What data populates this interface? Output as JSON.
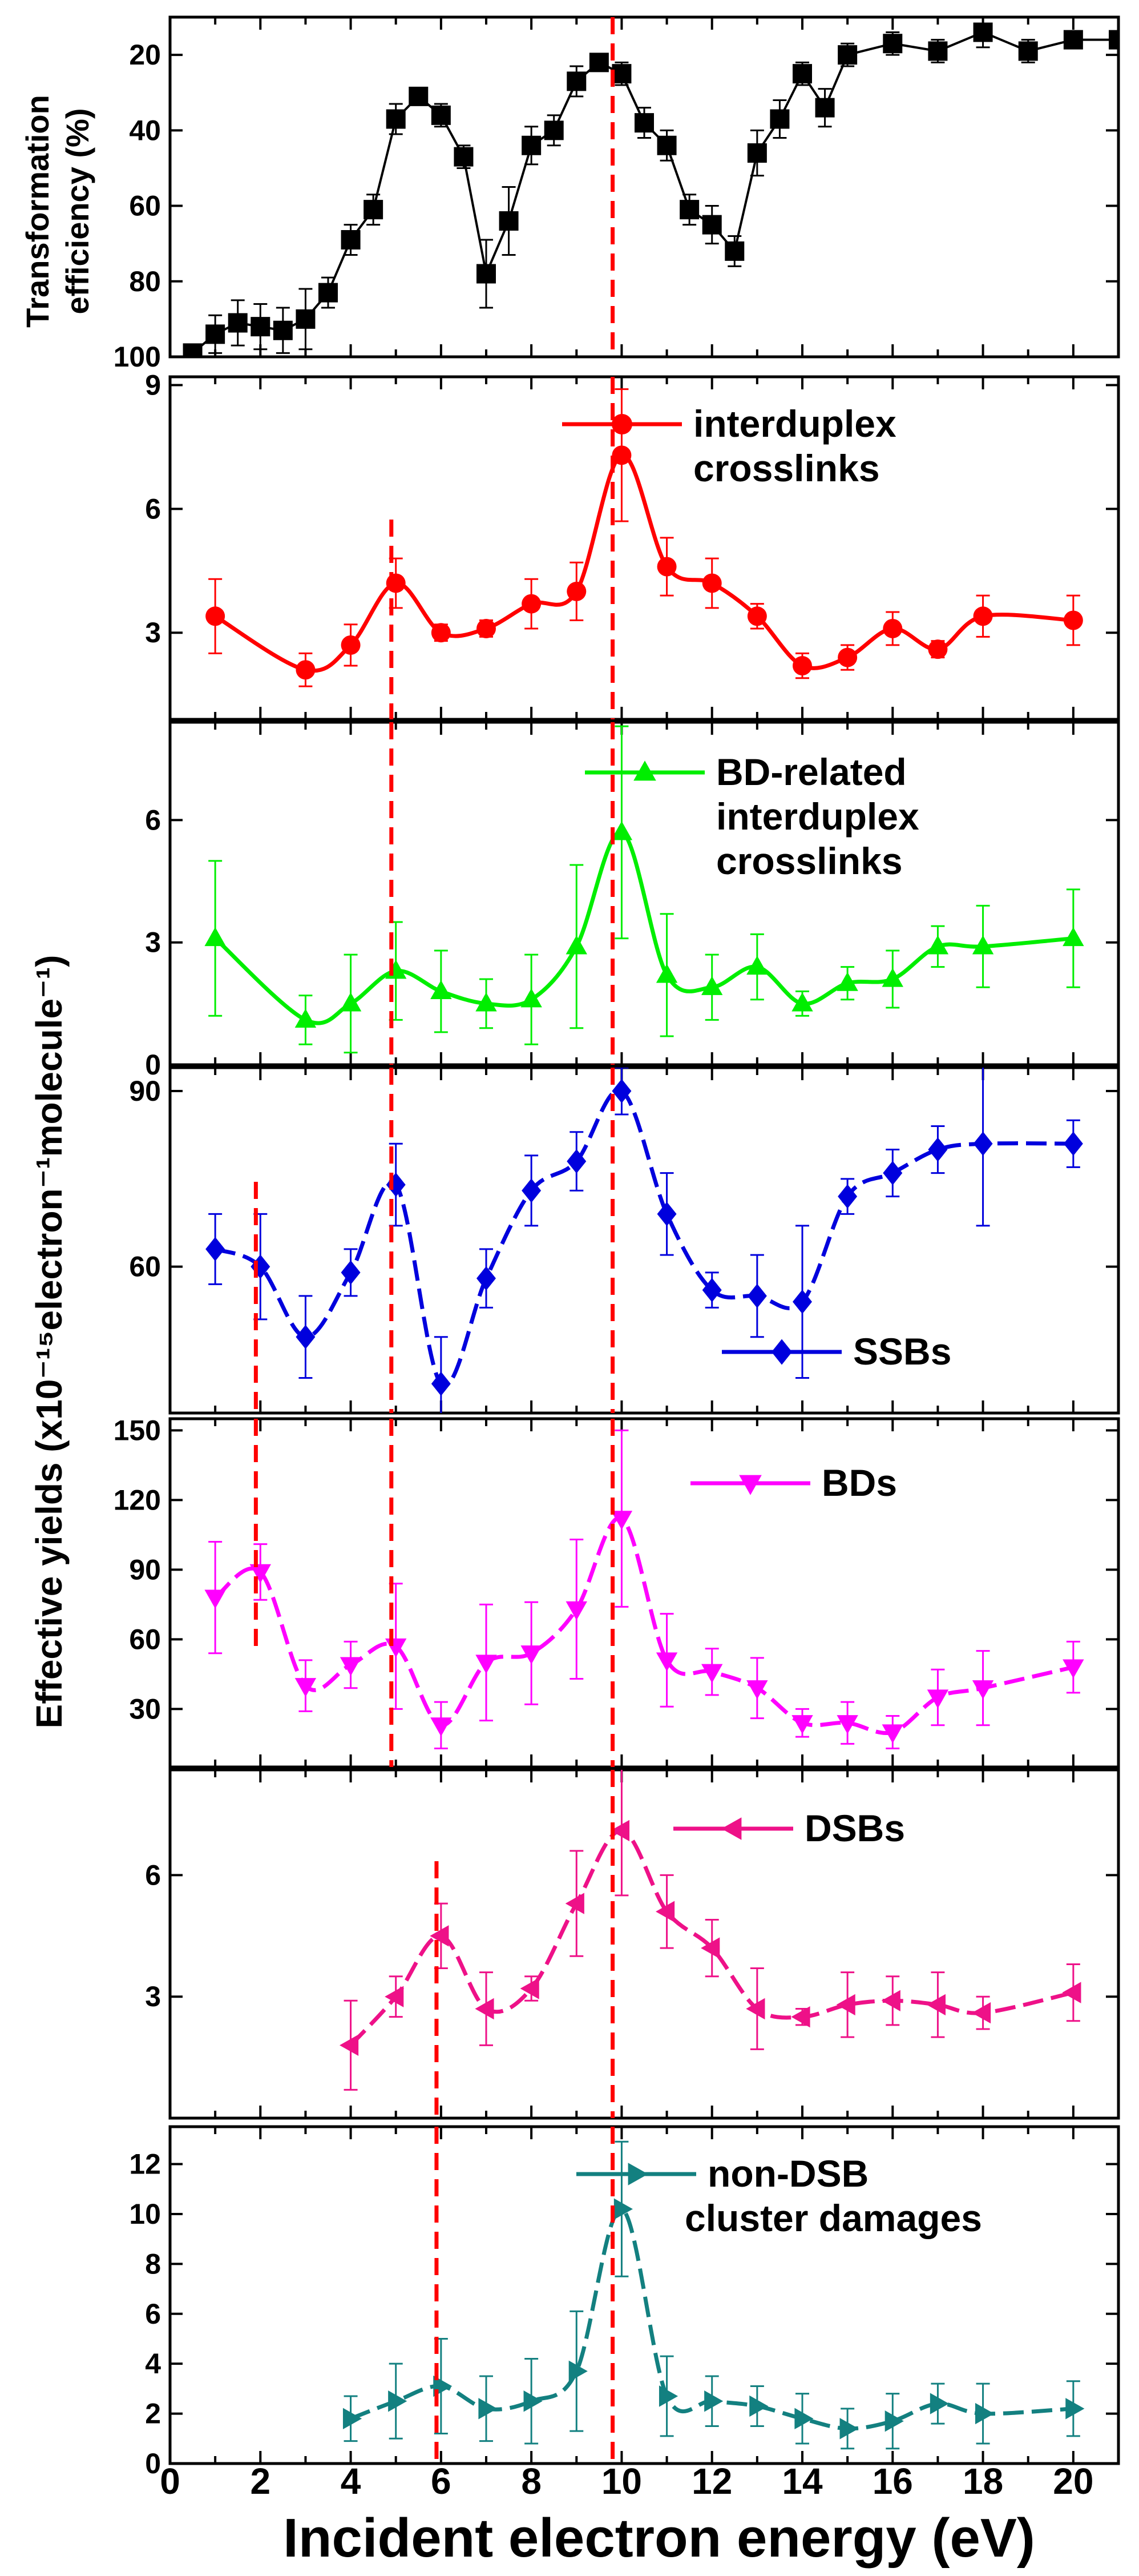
{
  "chart_data": {
    "type": "line",
    "title": "",
    "xlabel": "Incident electron energy (eV)",
    "x_ticks": [
      "0",
      "2",
      "4",
      "6",
      "8",
      "10",
      "12",
      "14",
      "16",
      "18",
      "20"
    ],
    "xlim": [
      0,
      21
    ],
    "shared_ylabel": "Effective yields (x10⁻¹⁵electron⁻¹molecule⁻¹)",
    "panels": [
      {
        "id": "transformation",
        "ylabel_line1": "Transformation",
        "ylabel_line2": "efficiency (%)",
        "ylim": [
          100,
          10
        ],
        "y_ticks": [
          "20",
          "40",
          "60",
          "80",
          "100"
        ],
        "y_tick_values": [
          20,
          40,
          60,
          80,
          100
        ],
        "legend": [],
        "color": "#000000",
        "marker": "square",
        "line_style": "solid",
        "x": [
          0.5,
          1,
          1.5,
          2,
          2.5,
          3,
          3.5,
          4,
          4.5,
          5,
          5.5,
          6,
          6.5,
          7,
          7.5,
          8,
          8.5,
          9,
          9.5,
          10,
          10.5,
          11,
          11.5,
          12,
          12.5,
          13,
          13.5,
          14,
          14.5,
          15,
          16,
          17,
          18,
          19,
          20,
          21
        ],
        "values": [
          99,
          94,
          91,
          92,
          93,
          90,
          83,
          69,
          61,
          37,
          31,
          36,
          47,
          78,
          64,
          44,
          40,
          27,
          22,
          25,
          38,
          44,
          61,
          65,
          72,
          46,
          37,
          25,
          34,
          20,
          17,
          19,
          14,
          19,
          16,
          16
        ],
        "errors": [
          2,
          5,
          6,
          6,
          6,
          8,
          4,
          4,
          4,
          4,
          2,
          3,
          3,
          9,
          9,
          5,
          4,
          4,
          2,
          3,
          4,
          4,
          4,
          5,
          4,
          6,
          5,
          3,
          5,
          3,
          3,
          3,
          4,
          3,
          2,
          2
        ],
        "vlines": [
          9.8
        ]
      },
      {
        "id": "interduplex",
        "ylim": [
          0.9,
          9.2
        ],
        "y_ticks": [
          "3",
          "6",
          "9"
        ],
        "y_tick_values": [
          3,
          6,
          9
        ],
        "legend": [
          "interduplex",
          "crosslinks"
        ],
        "color": "#ff0000",
        "marker": "circle",
        "line_style": "solid",
        "x": [
          1,
          3,
          4,
          5,
          6,
          7,
          8,
          9,
          10,
          11,
          12,
          13,
          14,
          15,
          16,
          17,
          18,
          20
        ],
        "values": [
          3.4,
          2.1,
          2.7,
          4.2,
          3.0,
          3.1,
          3.7,
          4.0,
          7.3,
          4.6,
          4.2,
          3.4,
          2.2,
          2.4,
          3.1,
          2.6,
          3.4,
          3.3
        ],
        "errors": [
          0.9,
          0.4,
          0.5,
          0.6,
          0.2,
          0.2,
          0.6,
          0.7,
          1.6,
          0.7,
          0.6,
          0.3,
          0.3,
          0.3,
          0.4,
          0.2,
          0.5,
          0.6
        ],
        "vlines": [
          4.9,
          9.8
        ]
      },
      {
        "id": "bd-related",
        "ylim": [
          0,
          8.4
        ],
        "y_ticks": [
          "0",
          "3",
          "6"
        ],
        "y_tick_values": [
          0,
          3,
          6
        ],
        "legend": [
          "BD-related",
          "interduplex",
          "crosslinks"
        ],
        "color": "#00ee00",
        "marker": "triangle-up",
        "line_style": "solid",
        "x": [
          1,
          3,
          4,
          5,
          6,
          7,
          8,
          9,
          10,
          11,
          12,
          13,
          14,
          15,
          16,
          17,
          18,
          20
        ],
        "values": [
          3.1,
          1.1,
          1.5,
          2.3,
          1.8,
          1.5,
          1.6,
          2.9,
          5.7,
          2.2,
          1.9,
          2.4,
          1.5,
          2.0,
          2.1,
          2.9,
          2.9,
          3.1
        ],
        "errors": [
          1.9,
          0.6,
          1.2,
          1.2,
          1.0,
          0.6,
          1.1,
          2.0,
          2.6,
          1.5,
          0.8,
          0.8,
          0.3,
          0.4,
          0.7,
          0.5,
          1.0,
          1.2
        ],
        "vlines": [
          4.9,
          9.8
        ]
      },
      {
        "id": "ssbs",
        "ylim": [
          35,
          94
        ],
        "y_ticks": [
          "60",
          "90"
        ],
        "y_tick_values": [
          60,
          90
        ],
        "legend": [
          "SSBs"
        ],
        "color": "#0000dd",
        "marker": "diamond",
        "line_style": "dashed",
        "x": [
          1,
          2,
          3,
          4,
          5,
          6,
          7,
          8,
          9,
          10,
          11,
          12,
          13,
          14,
          15,
          16,
          17,
          18,
          20
        ],
        "values": [
          63,
          60,
          48,
          59,
          74,
          40,
          58,
          73,
          78,
          90,
          69,
          56,
          55,
          54,
          72,
          76,
          80,
          81,
          81
        ],
        "errors": [
          6,
          9,
          7,
          4,
          7,
          8,
          5,
          6,
          5,
          4,
          7,
          3,
          7,
          13,
          3,
          4,
          4,
          14,
          4
        ],
        "vlines": [
          1.9,
          4.9,
          9.8
        ]
      },
      {
        "id": "bds",
        "ylim": [
          5,
          155
        ],
        "y_ticks": [
          "30",
          "60",
          "90",
          "120",
          "150"
        ],
        "y_tick_values": [
          30,
          60,
          90,
          120,
          150
        ],
        "legend": [
          "BDs"
        ],
        "color": "#ff00ff",
        "marker": "triangle-down",
        "line_style": "dashed",
        "x": [
          1,
          2,
          3,
          4,
          5,
          6,
          7,
          8,
          9,
          10,
          11,
          12,
          13,
          14,
          15,
          16,
          17,
          18,
          20
        ],
        "values": [
          78,
          89,
          40,
          49,
          57,
          23,
          50,
          54,
          73,
          112,
          51,
          46,
          39,
          24,
          24,
          20,
          35,
          39,
          48
        ],
        "errors": [
          24,
          12,
          11,
          10,
          27,
          10,
          25,
          22,
          30,
          38,
          20,
          10,
          13,
          6,
          9,
          7,
          12,
          16,
          11
        ],
        "vlines": [
          1.9,
          4.9,
          9.8
        ]
      },
      {
        "id": "dsbs",
        "ylim": [
          0,
          8.6
        ],
        "y_ticks": [
          "3",
          "6"
        ],
        "y_tick_values": [
          3,
          6
        ],
        "legend": [
          "DSBs"
        ],
        "color": "#ee1188",
        "marker": "triangle-left",
        "line_style": "dashed",
        "x": [
          4,
          5,
          6,
          7,
          8,
          9,
          10,
          11,
          12,
          13,
          14,
          15,
          16,
          17,
          18,
          20
        ],
        "values": [
          1.8,
          3.0,
          4.5,
          2.7,
          3.2,
          5.3,
          7.1,
          5.1,
          4.2,
          2.7,
          2.5,
          2.8,
          2.9,
          2.8,
          2.6,
          3.1
        ],
        "errors": [
          1.1,
          0.5,
          0.8,
          0.9,
          0.3,
          1.3,
          1.6,
          0.9,
          0.7,
          1.0,
          0.2,
          0.8,
          0.6,
          0.8,
          0.4,
          0.7
        ],
        "vlines": [
          5.9,
          9.8
        ]
      },
      {
        "id": "non-dsb",
        "ylim": [
          0,
          13.5
        ],
        "y_ticks": [
          "0",
          "2",
          "4",
          "6",
          "8",
          "10",
          "12"
        ],
        "y_tick_values": [
          0,
          2,
          4,
          6,
          8,
          10,
          12
        ],
        "legend": [
          "non-DSB",
          "cluster damages"
        ],
        "color": "#138080",
        "marker": "triangle-right",
        "line_style": "dashed",
        "x": [
          4,
          5,
          6,
          7,
          8,
          9,
          10,
          11,
          12,
          13,
          14,
          15,
          16,
          17,
          18,
          20
        ],
        "values": [
          1.8,
          2.5,
          3.1,
          2.2,
          2.5,
          3.7,
          10.2,
          2.7,
          2.5,
          2.3,
          1.8,
          1.4,
          1.7,
          2.4,
          2.0,
          2.2
        ],
        "errors": [
          0.9,
          1.5,
          1.9,
          1.3,
          1.7,
          2.4,
          2.7,
          1.6,
          1.0,
          0.8,
          1.0,
          0.8,
          1.1,
          0.8,
          1.2,
          1.1
        ],
        "vlines": [
          5.9,
          9.8
        ]
      }
    ]
  }
}
